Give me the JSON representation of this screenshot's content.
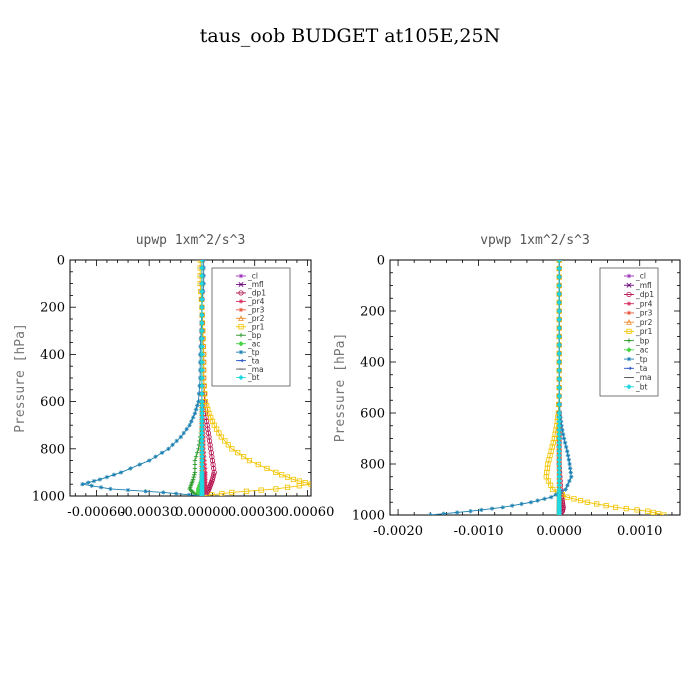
{
  "figure": {
    "title": "taus_oob  BUDGET at105E,25N"
  },
  "colors": {
    "_cl": "#9b30b8",
    "_mfl": "#6a0a7a",
    "_dp1": "#b3124e",
    "_pr4": "#d62a5a",
    "_pr3": "#e8553a",
    "_pr2": "#f08a2a",
    "_pr1": "#f2c400",
    "_bp": "#2a9a2a",
    "_ac": "#46d446",
    "_tp": "#1a7fb0",
    "_ta": "#2a55c8",
    "_ma": "#555555",
    "_bt": "#22d8e0"
  },
  "chart_data": [
    {
      "type": "line",
      "title": "upwp  1xm^2/s^3",
      "ylabel": "Pressure [hPa]",
      "xlim": [
        -0.00075,
        0.00062
      ],
      "ylim": [
        1000,
        0
      ],
      "yticks": [
        0,
        200,
        400,
        600,
        800,
        1000
      ],
      "xticks": [
        -0.0006,
        -0.0003,
        0.0,
        0.0003,
        0.0006
      ],
      "xtick_labels": [
        "-0.00060",
        "-0.00030",
        "0.00000",
        "0.00030",
        "0.00060"
      ],
      "legend": "top-right",
      "y": [
        0,
        100,
        200,
        300,
        400,
        500,
        600,
        650,
        700,
        750,
        800,
        850,
        900,
        930,
        950,
        970,
        985,
        1000
      ],
      "series": [
        {
          "name": "_cl",
          "values": [
            0,
            0,
            0,
            0,
            0,
            0,
            0,
            0,
            0,
            0,
            0,
            0,
            0,
            0,
            0,
            0,
            0,
            0
          ]
        },
        {
          "name": "_mfl",
          "values": [
            0,
            0,
            0,
            0,
            0,
            0,
            0,
            0,
            0,
            0,
            0,
            0,
            0,
            0,
            0,
            0,
            0,
            0
          ]
        },
        {
          "name": "_dp1",
          "values": [
            0,
            0,
            0,
            5e-06,
            1e-05,
            1e-05,
            1.5e-05,
            2e-05,
            3e-05,
            4e-05,
            5e-05,
            6e-05,
            7e-05,
            6e-05,
            5e-05,
            4e-05,
            3e-05,
            0.0
          ]
        },
        {
          "name": "_pr4",
          "values": [
            0,
            0,
            0,
            0,
            0,
            0,
            0,
            0,
            5e-06,
            1e-05,
            1e-05,
            1.5e-05,
            2e-05,
            2e-05,
            2e-05,
            2e-05,
            1e-05,
            0.0
          ]
        },
        {
          "name": "_pr3",
          "values": [
            0,
            0,
            0,
            0,
            0,
            0,
            0,
            0,
            0,
            0,
            0,
            0,
            0,
            0,
            0,
            0,
            0,
            0
          ]
        },
        {
          "name": "_pr2",
          "values": [
            0,
            0,
            0,
            0,
            0,
            0,
            0,
            0,
            0,
            0,
            0,
            0,
            0,
            0,
            0,
            0,
            0,
            0
          ]
        },
        {
          "name": "_pr1",
          "values": [
            -1e-05,
            -1e-05,
            0.0,
            5e-06,
            1e-05,
            1e-05,
            2e-05,
            4e-05,
            7e-05,
            0.00011,
            0.00017,
            0.00027,
            0.00042,
            0.00052,
            0.00062,
            0.00042,
            0.00017,
            0.0
          ]
        },
        {
          "name": "_bp",
          "values": [
            0,
            0,
            0,
            0,
            0,
            0,
            0,
            0,
            0,
            -1e-05,
            -2e-05,
            -4e-05,
            -4e-05,
            -5e-05,
            -6e-05,
            -7e-05,
            -5e-05,
            -2e-05
          ]
        },
        {
          "name": "_ac",
          "values": [
            0,
            0,
            0,
            0,
            0,
            0,
            0,
            0,
            0,
            0,
            0,
            0,
            0,
            0,
            -1e-05,
            -2e-05,
            -2e-05,
            0.0
          ]
        },
        {
          "name": "_tp",
          "values": [
            1e-05,
            1e-05,
            0.0,
            -5e-06,
            -1e-05,
            -1e-05,
            -2e-05,
            -4e-05,
            -7e-05,
            -0.00012,
            -0.00019,
            -0.0003,
            -0.00046,
            -0.00058,
            -0.00068,
            -0.00052,
            -0.00022,
            0.0
          ]
        },
        {
          "name": "_ta",
          "values": [
            0,
            0,
            0,
            0,
            0,
            0,
            0,
            0,
            0,
            0,
            0,
            0,
            0,
            0,
            0,
            0,
            0,
            0
          ]
        },
        {
          "name": "_ma",
          "values": [
            0,
            0,
            0,
            0,
            0,
            0,
            0,
            0,
            0,
            0,
            0,
            0,
            0,
            0,
            0,
            0,
            0,
            0
          ]
        },
        {
          "name": "_bt",
          "values": [
            0,
            0,
            0,
            0,
            0,
            0,
            0,
            0,
            0,
            0,
            0,
            0,
            0,
            0,
            0,
            0,
            0,
            0
          ]
        }
      ]
    },
    {
      "type": "line",
      "title": "vpwp  1xm^2/s^3",
      "ylabel": "Pressure [hPa]",
      "xlim": [
        -0.0021,
        0.0015
      ],
      "ylim": [
        1000,
        0
      ],
      "yticks": [
        0,
        200,
        400,
        600,
        800,
        1000
      ],
      "xticks": [
        -0.002,
        -0.001,
        0.0,
        0.001
      ],
      "xtick_labels": [
        "-0.0020",
        "-0.0010",
        "0.0000",
        "0.0010"
      ],
      "legend": "top-right",
      "y": [
        0,
        100,
        200,
        300,
        400,
        500,
        600,
        650,
        700,
        750,
        800,
        850,
        900,
        930,
        950,
        970,
        985,
        1000
      ],
      "series": [
        {
          "name": "_cl",
          "values": [
            0,
            0,
            0,
            0,
            0,
            0,
            0,
            0,
            0,
            0,
            0,
            0,
            0,
            0,
            0,
            0,
            0,
            0
          ]
        },
        {
          "name": "_mfl",
          "values": [
            0,
            0,
            0,
            0,
            0,
            0,
            0,
            0,
            0,
            0,
            0,
            0,
            0,
            0,
            0,
            0,
            0,
            0
          ]
        },
        {
          "name": "_dp1",
          "values": [
            0,
            0,
            0,
            0,
            0,
            0,
            0,
            0,
            0,
            0,
            0,
            1e-05,
            2e-05,
            3e-05,
            4e-05,
            5e-05,
            4e-05,
            0.0
          ]
        },
        {
          "name": "_pr4",
          "values": [
            0,
            0,
            0,
            0,
            0,
            0,
            0,
            0,
            0,
            0,
            0,
            0,
            1e-05,
            2e-05,
            2e-05,
            2e-05,
            1e-05,
            0.0
          ]
        },
        {
          "name": "_pr3",
          "values": [
            0,
            0,
            0,
            0,
            0,
            0,
            0,
            0,
            0,
            0,
            0,
            0,
            0,
            0,
            0,
            0,
            0,
            0
          ]
        },
        {
          "name": "_pr2",
          "values": [
            0,
            0,
            0,
            0,
            0,
            0,
            0,
            0,
            0,
            0,
            0,
            0,
            0,
            0,
            0,
            0,
            0,
            0
          ]
        },
        {
          "name": "_pr1",
          "values": [
            0,
            0,
            0,
            0,
            0,
            0,
            -1e-05,
            -3e-05,
            -6e-05,
            -0.0001,
            -0.00014,
            -0.00016,
            -8e-05,
            0.0001,
            0.00035,
            0.0007,
            0.0011,
            0.0013
          ]
        },
        {
          "name": "_bp",
          "values": [
            0,
            0,
            0,
            0,
            0,
            0,
            0,
            0,
            0,
            0,
            0,
            0,
            0,
            0,
            0,
            0,
            0,
            0
          ]
        },
        {
          "name": "_ac",
          "values": [
            0,
            0,
            0,
            0,
            0,
            0,
            0,
            0,
            0,
            0,
            0,
            0,
            0,
            0,
            0,
            0,
            0,
            0
          ]
        },
        {
          "name": "_tp",
          "values": [
            0,
            0,
            0,
            0,
            0,
            0,
            1e-05,
            3e-05,
            6e-05,
            0.0001,
            0.00013,
            0.00015,
            8e-05,
            -0.0001,
            -0.00035,
            -0.0007,
            -0.0011,
            -0.0016
          ]
        },
        {
          "name": "_ta",
          "values": [
            0,
            0,
            0,
            0,
            0,
            0,
            0,
            0,
            0,
            0,
            0,
            0,
            0,
            0,
            0,
            0,
            0,
            0
          ]
        },
        {
          "name": "_ma",
          "values": [
            0,
            0,
            0,
            0,
            0,
            0,
            0,
            0,
            0,
            0,
            0,
            0,
            0,
            0,
            0,
            0,
            0,
            0
          ]
        },
        {
          "name": "_bt",
          "values": [
            0,
            0,
            0,
            0,
            0,
            0,
            0,
            0,
            0,
            0,
            0,
            0,
            0,
            0,
            0,
            0,
            0,
            0
          ]
        }
      ]
    }
  ]
}
